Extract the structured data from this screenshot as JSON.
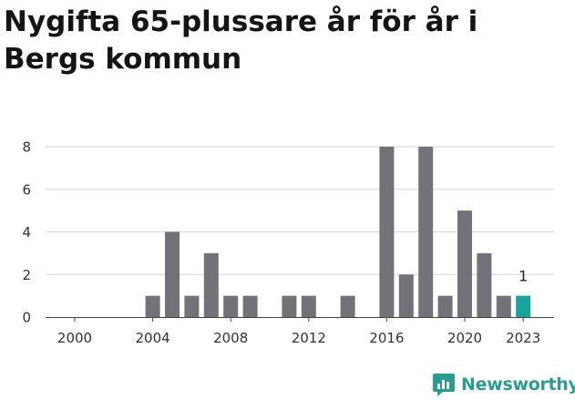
{
  "chart_data": {
    "type": "bar",
    "title": "Nygifta 65-plussare år för år i Bergs kommun",
    "x": [
      2000,
      2001,
      2002,
      2003,
      2004,
      2005,
      2006,
      2007,
      2008,
      2009,
      2010,
      2011,
      2012,
      2013,
      2014,
      2015,
      2016,
      2017,
      2018,
      2019,
      2020,
      2021,
      2022,
      2023
    ],
    "values": [
      0,
      0,
      0,
      0,
      1,
      4,
      1,
      3,
      1,
      1,
      0,
      1,
      1,
      0,
      1,
      0,
      8,
      2,
      8,
      1,
      5,
      3,
      1,
      1
    ],
    "x_tick_labels": [
      "2000",
      "2004",
      "2008",
      "2012",
      "2016",
      "2020",
      "2023"
    ],
    "y_ticks": [
      0,
      2,
      4,
      6,
      8
    ],
    "ylim": [
      0,
      8
    ],
    "highlight": {
      "x": 2023,
      "label": "1"
    },
    "colors": {
      "bar": "#737278",
      "highlight": "#1aa39a"
    },
    "grid": true,
    "legend": "none"
  },
  "brand": {
    "name": "Newsworthy",
    "icon": "newsworthy-logo-icon",
    "color": "#2a9d93"
  }
}
